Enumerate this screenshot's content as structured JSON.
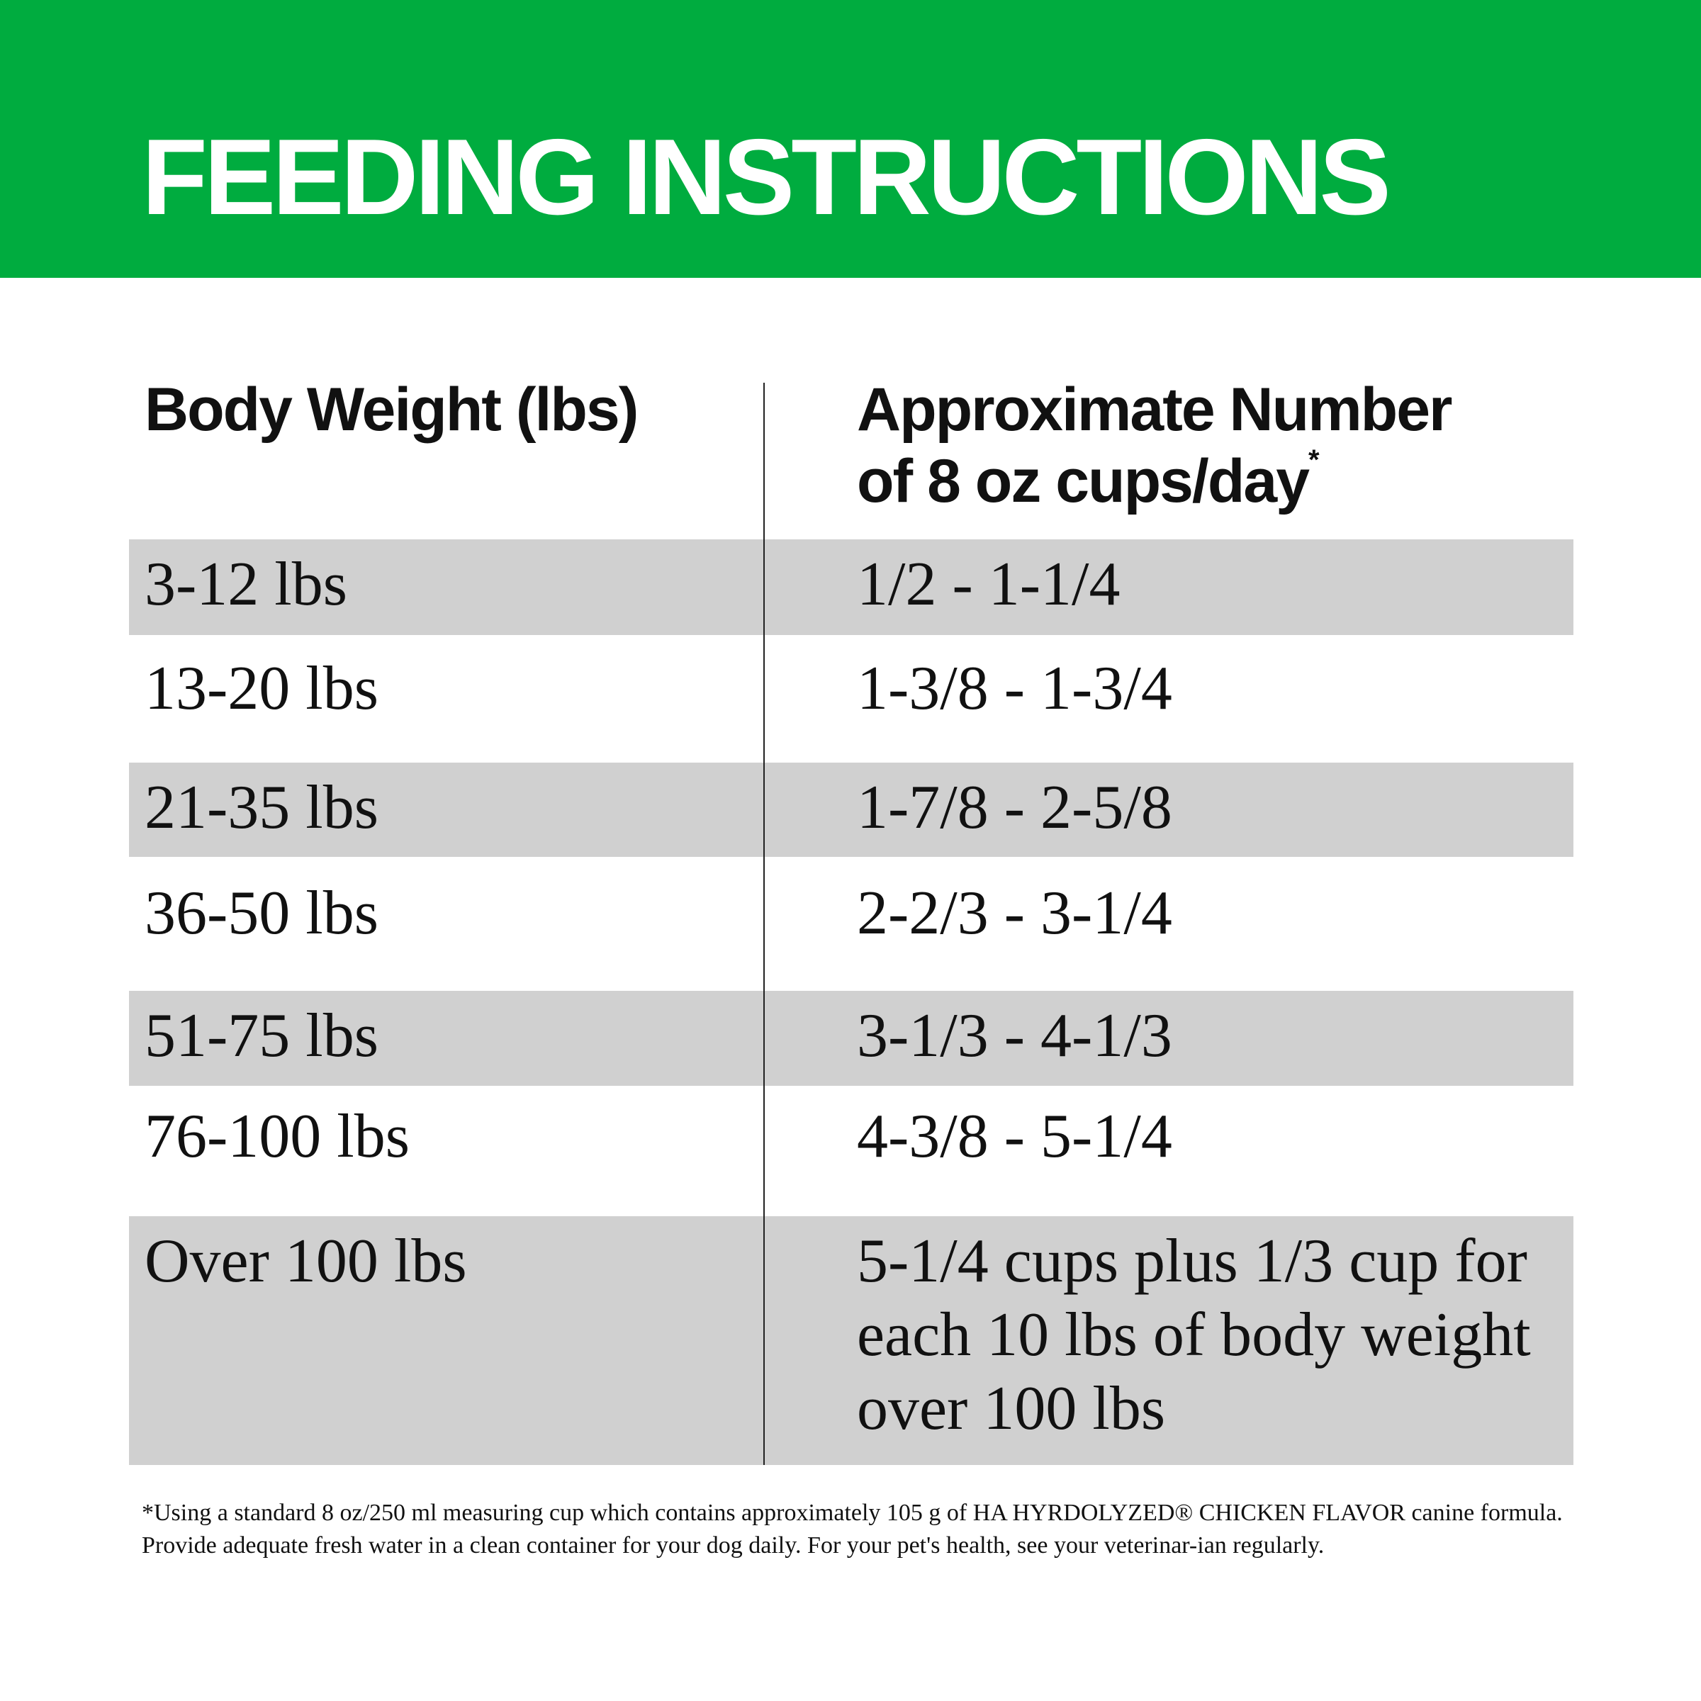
{
  "banner": {
    "title": "FEEDING INSTRUCTIONS",
    "color": "#00ac3f"
  },
  "table": {
    "headers": {
      "weight": "Body Weight (lbs)",
      "cups_line1": "Approximate Number",
      "cups_line2": "of 8 oz cups/day",
      "cups_mark": "*"
    },
    "rows": [
      {
        "weight": "3-12 lbs",
        "cups": "1/2 - 1-1/4"
      },
      {
        "weight": "13-20 lbs",
        "cups": "1-3/8 - 1-3/4"
      },
      {
        "weight": "21-35 lbs",
        "cups": "1-7/8 - 2-5/8"
      },
      {
        "weight": "36-50 lbs",
        "cups": "2-2/3 - 3-1/4"
      },
      {
        "weight": "51-75 lbs",
        "cups": "3-1/3 - 4-1/3"
      },
      {
        "weight": "76-100 lbs",
        "cups": "4-3/8 - 5-1/4"
      },
      {
        "weight": "Over 100 lbs",
        "cups": "5-1/4 cups plus 1/3 cup for each 10 lbs of body weight over 100 lbs"
      }
    ]
  },
  "footnote": "*Using a standard 8 oz/250 ml measuring cup which contains approximately 105 g of HA HYRDOLYZED® CHICKEN FLAVOR canine formula. Provide adequate fresh water in a clean container for your dog daily. For your pet's health, see your veterinar-ian regularly."
}
